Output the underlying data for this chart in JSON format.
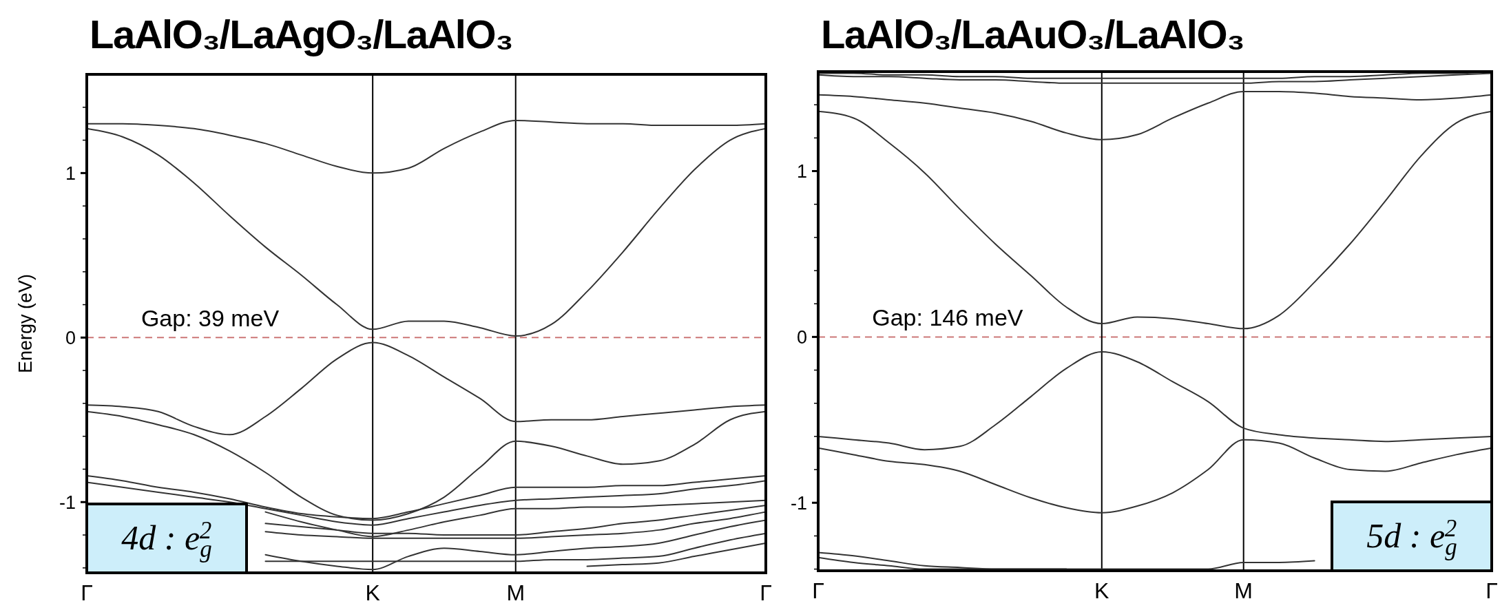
{
  "chart_data": [
    {
      "type": "line",
      "title": "LaAlO₃/LaAgO₃/LaAlO₃",
      "ylabel": "Energy (eV)",
      "categories": [
        "Γ",
        null,
        null,
        null,
        null,
        null,
        null,
        null,
        "K",
        null,
        null,
        null,
        "M",
        null,
        null,
        null,
        null,
        null,
        null,
        "Γ"
      ],
      "ylim": [
        -1.43,
        1.6
      ],
      "yticks": [
        {
          "value": 1.4,
          "label": null
        },
        {
          "value": 1.2,
          "label": null
        },
        1,
        {
          "value": 0.8,
          "label": null
        },
        {
          "value": 0.6,
          "label": null
        },
        {
          "value": 0.4,
          "label": null
        },
        {
          "value": 0.2,
          "label": null
        },
        0,
        {
          "value": -0.2,
          "label": null
        },
        {
          "value": -0.4,
          "label": null
        },
        {
          "value": -0.6,
          "label": null
        },
        {
          "value": -0.8,
          "label": null
        },
        -1,
        {
          "value": -1.2,
          "label": null
        },
        {
          "value": -1.4,
          "label": null
        }
      ],
      "ref_lines": [
        {
          "axis": "y",
          "value": 0,
          "color": "#cc7777",
          "line_style": "dashed"
        },
        {
          "axis": "x",
          "value": "K",
          "color": "#000000",
          "line_style": "solid"
        },
        {
          "axis": "x",
          "value": "M",
          "color": "#000000",
          "line_style": "solid"
        }
      ],
      "annotations": [
        "Gap: 39 meV",
        "4d : e$_{g}$$^{2}$"
      ],
      "series": [
        {
          "color": "#333333",
          "values": [
            1.3,
            1.3,
            1.29,
            1.27,
            1.23,
            1.18,
            1.11,
            1.04,
            1.0,
            1.03,
            1.15,
            1.25,
            1.32,
            1.31,
            1.3,
            1.3,
            1.29,
            1.29,
            1.29,
            1.3
          ]
        },
        {
          "color": "#333333",
          "values": [
            1.27,
            1.22,
            1.11,
            0.94,
            0.74,
            0.55,
            0.38,
            0.2,
            0.05,
            0.1,
            0.1,
            0.06,
            0.01,
            0.08,
            0.28,
            0.52,
            0.78,
            1.02,
            1.2,
            1.27
          ]
        },
        {
          "color": "#333333",
          "values": [
            -0.41,
            -0.42,
            -0.45,
            -0.54,
            -0.59,
            -0.48,
            -0.31,
            -0.13,
            -0.03,
            -0.11,
            -0.24,
            -0.37,
            -0.51,
            -0.5,
            -0.5,
            -0.48,
            -0.46,
            -0.44,
            -0.42,
            -0.41
          ]
        },
        {
          "color": "#333333",
          "values": [
            -0.45,
            -0.48,
            -0.53,
            -0.59,
            -0.69,
            -0.82,
            -0.97,
            -1.08,
            -1.11,
            -1.07,
            -0.97,
            -0.79,
            -0.63,
            -0.66,
            -0.72,
            -0.77,
            -0.75,
            -0.65,
            -0.5,
            -0.45
          ]
        },
        {
          "color": "#333333",
          "values": [
            -0.84,
            -0.87,
            -0.91,
            -0.94,
            -0.98,
            -1.03,
            -1.07,
            -1.09,
            -1.1,
            -1.06,
            -1.01,
            -0.96,
            -0.91,
            -0.91,
            -0.91,
            -0.9,
            -0.9,
            -0.88,
            -0.86,
            -0.84
          ]
        },
        {
          "color": "#333333",
          "values": [
            -0.88,
            -0.91,
            -0.94,
            -0.97,
            -1.0,
            -1.04,
            -1.08,
            -1.12,
            -1.14,
            -1.1,
            -1.06,
            -1.02,
            -0.99,
            -0.98,
            -0.97,
            -0.96,
            -0.95,
            -0.92,
            -0.9,
            -0.87
          ]
        },
        {
          "color": "#333333",
          "values": [
            null,
            null,
            null,
            null,
            null,
            -1.06,
            -1.12,
            -1.17,
            -1.21,
            -1.17,
            -1.12,
            -1.08,
            -1.04,
            -1.04,
            -1.03,
            -1.03,
            -1.02,
            -1.01,
            -1.0,
            -0.99
          ]
        },
        {
          "color": "#333333",
          "values": [
            null,
            null,
            null,
            null,
            null,
            -1.13,
            -1.15,
            -1.17,
            -1.19,
            -1.19,
            -1.2,
            -1.2,
            -1.2,
            -1.18,
            -1.16,
            -1.13,
            -1.11,
            -1.08,
            -1.05,
            -1.02
          ]
        },
        {
          "color": "#333333",
          "values": [
            null,
            null,
            null,
            null,
            null,
            -1.18,
            -1.2,
            -1.21,
            -1.22,
            -1.22,
            -1.22,
            -1.22,
            -1.22,
            -1.21,
            -1.2,
            -1.19,
            -1.17,
            -1.13,
            -1.1,
            -1.06
          ]
        },
        {
          "color": "#333333",
          "values": [
            null,
            null,
            null,
            null,
            null,
            -1.32,
            -1.36,
            -1.39,
            -1.41,
            -1.33,
            -1.28,
            -1.3,
            -1.32,
            -1.3,
            -1.28,
            -1.27,
            -1.25,
            -1.2,
            -1.15,
            -1.11
          ]
        },
        {
          "color": "#333333",
          "values": [
            null,
            null,
            null,
            null,
            null,
            -1.36,
            -1.36,
            -1.36,
            -1.36,
            -1.36,
            -1.36,
            -1.36,
            -1.36,
            -1.35,
            -1.35,
            -1.34,
            -1.33,
            -1.28,
            -1.23,
            -1.19
          ]
        },
        {
          "color": "#333333",
          "values": [
            null,
            null,
            null,
            null,
            null,
            null,
            null,
            null,
            null,
            null,
            null,
            null,
            null,
            null,
            -1.39,
            -1.38,
            -1.37,
            -1.33,
            -1.29,
            -1.25
          ]
        }
      ]
    },
    {
      "type": "line",
      "title": "LaAlO₃/LaAuO₃/LaAlO₃",
      "categories": [
        "Γ",
        null,
        null,
        null,
        null,
        null,
        null,
        null,
        "K",
        null,
        null,
        null,
        "M",
        null,
        null,
        null,
        null,
        null,
        null,
        "Γ"
      ],
      "ylim": [
        -1.41,
        1.6
      ],
      "yticks": [
        {
          "value": 1.4,
          "label": null
        },
        {
          "value": 1.2,
          "label": null
        },
        1,
        {
          "value": 0.8,
          "label": null
        },
        {
          "value": 0.6,
          "label": null
        },
        {
          "value": 0.4,
          "label": null
        },
        {
          "value": 0.2,
          "label": null
        },
        0,
        {
          "value": -0.2,
          "label": null
        },
        {
          "value": -0.4,
          "label": null
        },
        {
          "value": -0.6,
          "label": null
        },
        {
          "value": -0.8,
          "label": null
        },
        -1,
        {
          "value": -1.2,
          "label": null
        },
        {
          "value": -1.4,
          "label": null
        }
      ],
      "ref_lines": [
        {
          "axis": "y",
          "value": 0,
          "color": "#cc7777",
          "line_style": "dashed"
        },
        {
          "axis": "x",
          "value": "K",
          "color": "#000000",
          "line_style": "solid"
        },
        {
          "axis": "x",
          "value": "M",
          "color": "#000000",
          "line_style": "solid"
        }
      ],
      "annotations": [
        "Gap: 146 meV",
        "5d : e$_{g}$$^{2}$"
      ],
      "series": [
        {
          "color": "#333333",
          "values": [
            1.59,
            1.59,
            1.58,
            1.58,
            1.57,
            1.57,
            1.56,
            1.56,
            1.56,
            1.56,
            1.56,
            1.56,
            1.56,
            1.56,
            1.57,
            1.57,
            1.58,
            1.59,
            1.59,
            1.6
          ]
        },
        {
          "color": "#333333",
          "values": [
            1.58,
            1.57,
            1.57,
            1.56,
            1.55,
            1.55,
            1.54,
            1.53,
            1.53,
            1.53,
            1.53,
            1.53,
            1.53,
            1.54,
            1.54,
            1.55,
            1.56,
            1.57,
            1.58,
            1.59
          ]
        },
        {
          "color": "#333333",
          "values": [
            1.46,
            1.45,
            1.43,
            1.41,
            1.38,
            1.35,
            1.3,
            1.23,
            1.19,
            1.22,
            1.32,
            1.41,
            1.48,
            1.48,
            1.47,
            1.45,
            1.44,
            1.43,
            1.44,
            1.46
          ]
        },
        {
          "color": "#333333",
          "values": [
            1.36,
            1.32,
            1.17,
            0.99,
            0.77,
            0.56,
            0.37,
            0.18,
            0.08,
            0.12,
            0.11,
            0.08,
            0.05,
            0.13,
            0.33,
            0.56,
            0.82,
            1.09,
            1.29,
            1.36
          ]
        },
        {
          "color": "#333333",
          "values": [
            -0.6,
            -0.62,
            -0.64,
            -0.68,
            -0.66,
            -0.53,
            -0.36,
            -0.19,
            -0.09,
            -0.15,
            -0.27,
            -0.39,
            -0.55,
            -0.59,
            -0.61,
            -0.62,
            -0.63,
            -0.62,
            -0.61,
            -0.6
          ]
        },
        {
          "color": "#333333",
          "values": [
            -0.67,
            -0.71,
            -0.75,
            -0.77,
            -0.81,
            -0.89,
            -0.97,
            -1.03,
            -1.06,
            -1.02,
            -0.94,
            -0.8,
            -0.62,
            -0.64,
            -0.73,
            -0.8,
            -0.81,
            -0.76,
            -0.71,
            -0.67
          ]
        },
        {
          "color": "#333333",
          "values": [
            -1.3,
            -1.32,
            -1.35,
            -1.38,
            -1.39,
            -1.4,
            -1.4,
            -1.4,
            -1.4,
            -1.4,
            -1.4,
            -1.4,
            -1.36,
            -1.36,
            -1.35,
            null,
            null,
            null,
            null,
            null
          ]
        },
        {
          "color": "#333333",
          "values": [
            -1.33,
            -1.36,
            -1.38,
            -1.4,
            -1.4,
            -1.4,
            -1.4,
            -1.4,
            null,
            null,
            null,
            null,
            null,
            null,
            null,
            null,
            null,
            null,
            null,
            null
          ]
        }
      ]
    }
  ]
}
